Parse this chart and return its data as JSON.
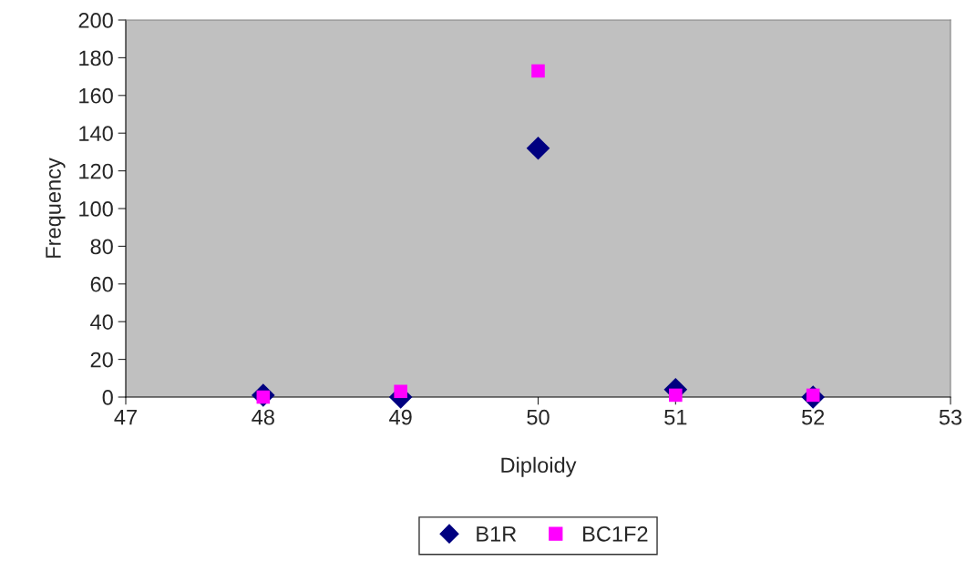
{
  "chart_data": {
    "type": "scatter",
    "xlabel": "Diploidy",
    "ylabel": "Frequency",
    "series": [
      {
        "name": "B1R",
        "color": "#000080",
        "marker": "diamond",
        "x": [
          48,
          49,
          50,
          51,
          52
        ],
        "values": [
          1,
          0,
          132,
          4,
          0
        ]
      },
      {
        "name": "BC1F2",
        "color": "#ff00ff",
        "marker": "square",
        "x": [
          48,
          49,
          50,
          51,
          52
        ],
        "values": [
          0,
          3,
          173,
          1,
          1
        ]
      }
    ],
    "xlim": [
      47,
      53
    ],
    "xticks": [
      47,
      48,
      49,
      50,
      51,
      52,
      53
    ],
    "ylim": [
      0,
      200
    ],
    "yticks": [
      0,
      20,
      40,
      60,
      80,
      100,
      120,
      140,
      160,
      180,
      200
    ],
    "grid": false,
    "legend": "bottom"
  }
}
